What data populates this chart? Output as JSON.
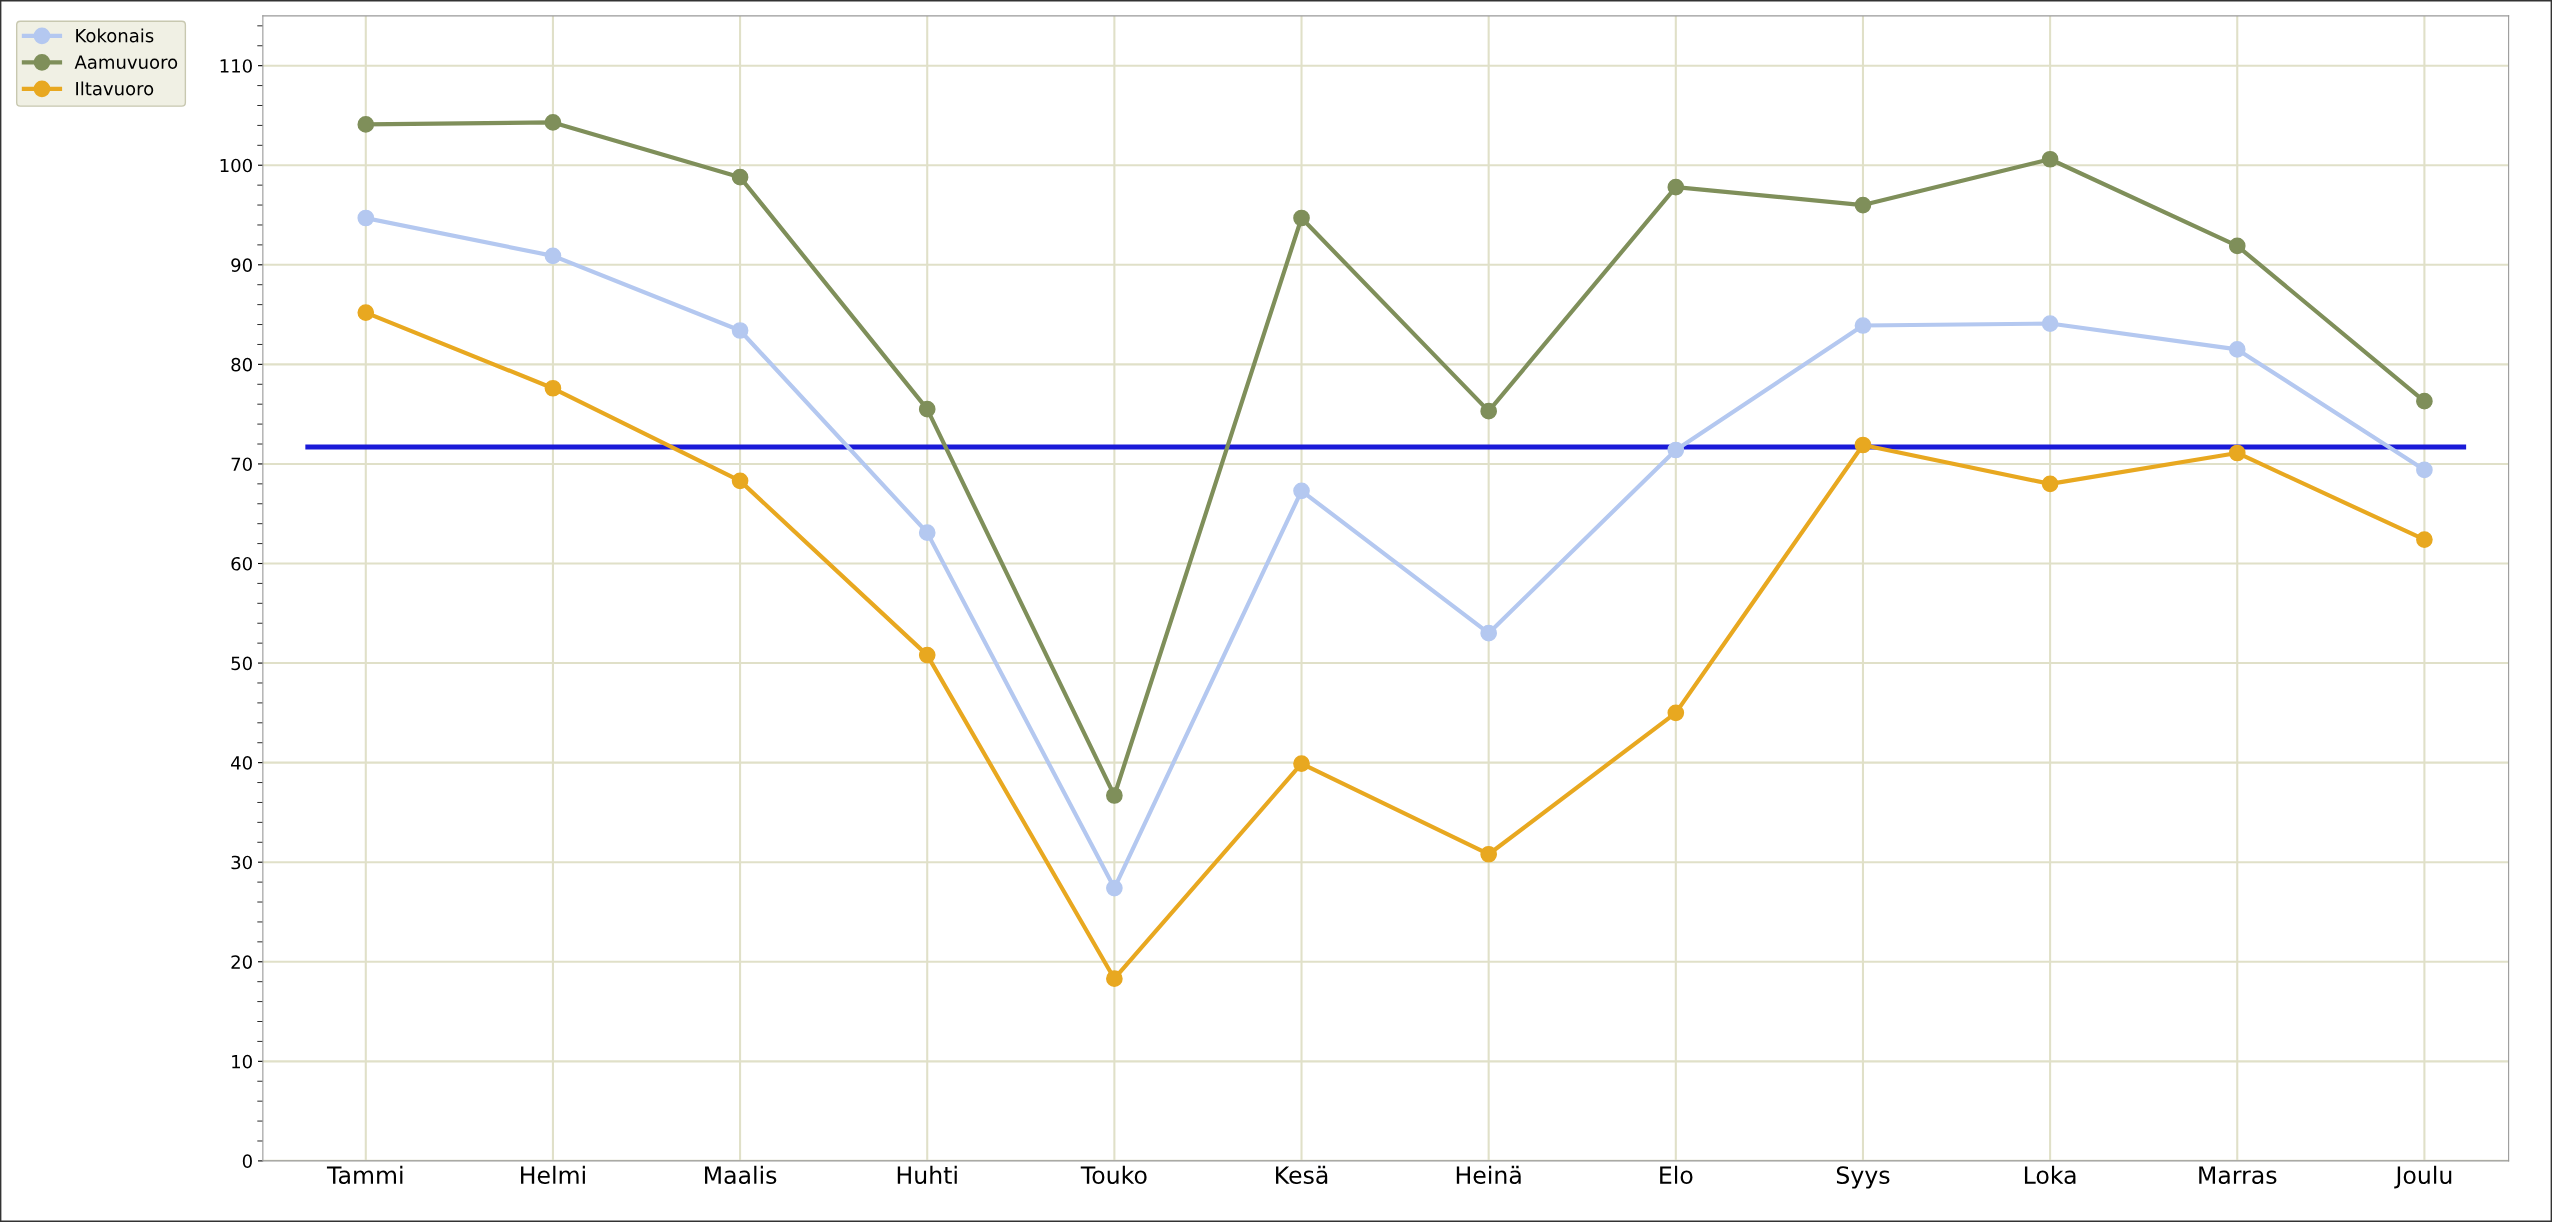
{
  "chart_data": {
    "type": "line",
    "categories": [
      "Tammi",
      "Helmi",
      "Maalis",
      "Huhti",
      "Touko",
      "Kesä",
      "Heinä",
      "Elo",
      "Syys",
      "Loka",
      "Marras",
      "Joulu"
    ],
    "series": [
      {
        "name": "Kokonais",
        "color": "#b4c8f0",
        "values": [
          94.7,
          90.9,
          83.4,
          63.1,
          27.4,
          67.3,
          53.0,
          71.4,
          83.9,
          84.1,
          81.5,
          69.4
        ]
      },
      {
        "name": "Aamuvuoro",
        "color": "#7f8f5a",
        "values": [
          104.1,
          104.3,
          98.8,
          75.5,
          36.7,
          94.7,
          75.3,
          97.8,
          96.0,
          100.6,
          91.9,
          76.3
        ]
      },
      {
        "name": "Iltavuoro",
        "color": "#e8a820",
        "values": [
          85.2,
          77.6,
          68.3,
          50.8,
          18.3,
          39.9,
          30.8,
          45.0,
          71.9,
          68.0,
          71.1,
          62.4
        ]
      }
    ],
    "ref_lines": [
      {
        "axis": "y",
        "value": 71.7,
        "color": "#1a1ad8"
      }
    ],
    "ylim": [
      0,
      115
    ],
    "yticks": [
      0,
      10,
      20,
      30,
      40,
      50,
      60,
      70,
      80,
      90,
      100,
      110
    ],
    "grid": true,
    "legend": "top left",
    "marker": "circle",
    "line_style": "solid"
  }
}
